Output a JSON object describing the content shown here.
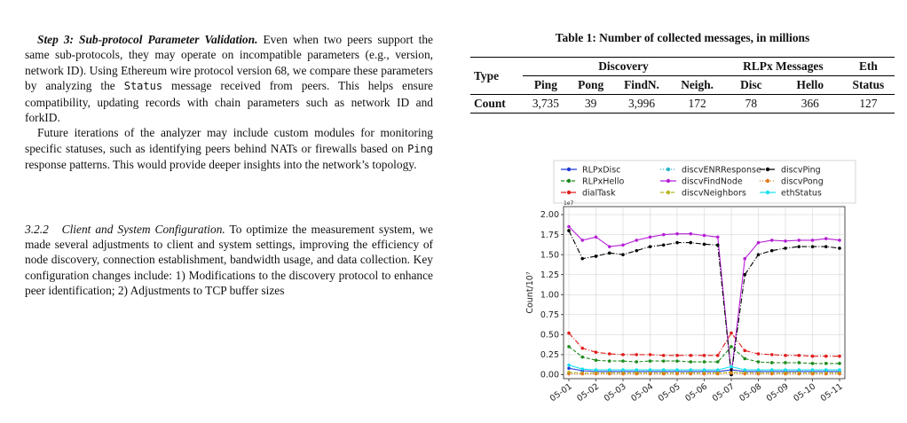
{
  "left": {
    "step3_lead": "Step 3: Sub-protocol Parameter Validation.",
    "step3_pre": " Even when two peers support the same sub-protocols, they may operate on incompatible parameters (e.g., version, network ID). Using Ethereum wire protocol version 68, we compare these parameters by analyzing the ",
    "step3_code": "Status",
    "step3_post": " message received from peers. This helps ensure compatibility, updating records with chain parameters such as network ID and forkID.",
    "future_pre": "Future iterations of the analyzer may include custom modules for monitoring specific statuses, such as identifying peers behind NATs or firewalls based on ",
    "future_code": "Ping",
    "future_post": " response patterns. This would provide deeper insights into the network’s topology.",
    "sec_number": "3.2.2",
    "sec_title": "Client and System Configuration.",
    "sec_text": " To optimize the measurement system, we made several adjustments to client and system settings, improving the efficiency of node discovery, connection establishment, bandwidth usage, and data collection. Key configuration changes include: 1) Modifications to the discovery protocol to enhance peer identification; 2) Adjustments to TCP buffer sizes"
  },
  "table": {
    "caption": "Table 1: Number of collected messages, in millions",
    "type_header": "Type",
    "groups": [
      "Discovery",
      "RLPx Messages",
      "Eth"
    ],
    "columns": [
      "Ping",
      "Pong",
      "FindN.",
      "Neigh.",
      "Disc",
      "Hello",
      "Status"
    ],
    "row_label": "Count",
    "values": [
      "3,735",
      "39",
      "3,996",
      "172",
      "78",
      "366",
      "127"
    ]
  },
  "chart_data": {
    "type": "line",
    "title": "",
    "xlabel": "",
    "ylabel": "Count/10⁷",
    "scale_note": "1e7",
    "ylim": [
      -0.05,
      2.1
    ],
    "yticks": [
      "0.00",
      "0.25",
      "0.50",
      "0.75",
      "1.00",
      "1.25",
      "1.50",
      "1.75",
      "2.00"
    ],
    "xticks": [
      "05-01",
      "05-02",
      "05-03",
      "05-04",
      "05-05",
      "05-06",
      "05-07",
      "05-08",
      "05-09",
      "05-10",
      "05-11"
    ],
    "grid": true,
    "legend_position": "top",
    "x": [
      "05-01",
      "05-01 12h",
      "05-02",
      "05-02 12h",
      "05-03",
      "05-03 12h",
      "05-04",
      "05-04 12h",
      "05-05",
      "05-05 12h",
      "05-06",
      "05-06 12h",
      "05-07",
      "05-07 12h",
      "05-08",
      "05-08 12h",
      "05-09",
      "05-09 12h",
      "05-10",
      "05-10 12h",
      "05-11"
    ],
    "series": [
      {
        "name": "RLPxDisc",
        "color": "#1f3bd6",
        "marker": "circle",
        "dash": "",
        "values": [
          0.08,
          0.05,
          0.04,
          0.04,
          0.04,
          0.04,
          0.04,
          0.04,
          0.04,
          0.04,
          0.04,
          0.04,
          0.06,
          0.04,
          0.04,
          0.04,
          0.04,
          0.04,
          0.04,
          0.04,
          0.04
        ]
      },
      {
        "name": "RLPxHello",
        "color": "#1a8a1a",
        "marker": "square",
        "dash": "4,2",
        "values": [
          0.35,
          0.22,
          0.18,
          0.17,
          0.17,
          0.16,
          0.17,
          0.17,
          0.17,
          0.16,
          0.16,
          0.16,
          0.35,
          0.2,
          0.16,
          0.15,
          0.15,
          0.15,
          0.14,
          0.14,
          0.14
        ]
      },
      {
        "name": "dialTask",
        "color": "#e01b1b",
        "marker": "triangle",
        "dash": "6,2,1,2",
        "values": [
          0.52,
          0.33,
          0.28,
          0.26,
          0.25,
          0.25,
          0.25,
          0.24,
          0.24,
          0.24,
          0.24,
          0.24,
          0.52,
          0.3,
          0.26,
          0.25,
          0.24,
          0.24,
          0.23,
          0.23,
          0.23
        ]
      },
      {
        "name": "discvENRResponse",
        "color": "#2bb5c7",
        "marker": "x",
        "dash": "1,2",
        "values": [
          0.02,
          0.02,
          0.02,
          0.02,
          0.02,
          0.02,
          0.02,
          0.02,
          0.02,
          0.02,
          0.02,
          0.02,
          0.03,
          0.02,
          0.02,
          0.02,
          0.02,
          0.02,
          0.02,
          0.02,
          0.02
        ]
      },
      {
        "name": "discvFindNode",
        "color": "#b51fd6",
        "marker": "diamond",
        "dash": "",
        "values": [
          1.85,
          1.68,
          1.72,
          1.6,
          1.62,
          1.68,
          1.72,
          1.75,
          1.76,
          1.76,
          1.74,
          1.72,
          0.0,
          1.45,
          1.65,
          1.68,
          1.67,
          1.68,
          1.68,
          1.7,
          1.68
        ]
      },
      {
        "name": "discvNeighbors",
        "color": "#b5b51f",
        "marker": "pentagon",
        "dash": "4,2",
        "values": [
          0.03,
          0.02,
          0.02,
          0.02,
          0.02,
          0.02,
          0.02,
          0.02,
          0.02,
          0.02,
          0.02,
          0.02,
          0.03,
          0.02,
          0.02,
          0.02,
          0.02,
          0.02,
          0.02,
          0.02,
          0.02
        ]
      },
      {
        "name": "discvPing",
        "color": "#000000",
        "marker": "circle",
        "dash": "6,2,1,2",
        "values": [
          1.8,
          1.45,
          1.48,
          1.52,
          1.5,
          1.55,
          1.6,
          1.62,
          1.65,
          1.65,
          1.63,
          1.62,
          0.0,
          1.25,
          1.5,
          1.55,
          1.58,
          1.6,
          1.6,
          1.6,
          1.58
        ]
      },
      {
        "name": "discvPong",
        "color": "#e07b1b",
        "marker": "circle",
        "dash": "1,2",
        "values": [
          0.01,
          0.01,
          0.01,
          0.01,
          0.01,
          0.01,
          0.01,
          0.01,
          0.01,
          0.01,
          0.01,
          0.01,
          0.02,
          0.01,
          0.01,
          0.01,
          0.01,
          0.01,
          0.01,
          0.01,
          0.01
        ]
      },
      {
        "name": "ethStatus",
        "color": "#19e0f0",
        "marker": "square",
        "dash": "",
        "values": [
          0.12,
          0.07,
          0.06,
          0.06,
          0.06,
          0.06,
          0.06,
          0.06,
          0.06,
          0.06,
          0.06,
          0.06,
          0.1,
          0.06,
          0.06,
          0.06,
          0.06,
          0.06,
          0.06,
          0.06,
          0.06
        ]
      }
    ]
  }
}
